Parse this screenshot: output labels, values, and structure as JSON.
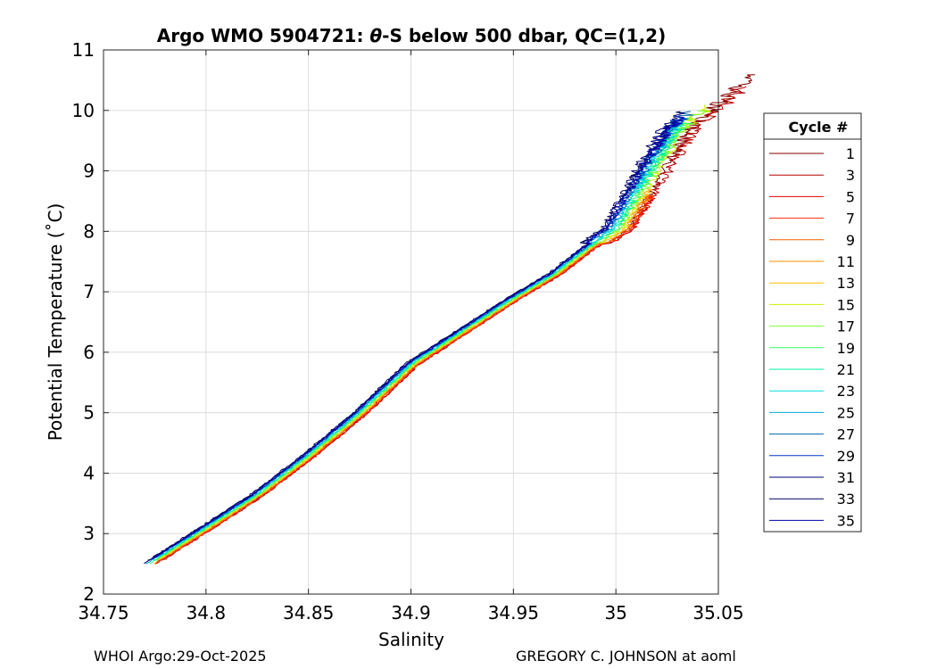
{
  "chart_data": {
    "type": "line",
    "title_prefix": "Argo WMO 5904721: ",
    "title_theta": "θ",
    "title_suffix": "-S below 500 dbar,  QC=(1,2)",
    "xlabel": "Salinity",
    "ylabel": "Potential Temperature (˚C)",
    "xlim": [
      34.75,
      35.05
    ],
    "ylim": [
      2,
      11
    ],
    "xticks": [
      "34.75",
      "34.8",
      "34.85",
      "34.9",
      "34.95",
      "35",
      "35.05"
    ],
    "yticks": [
      "2",
      "3",
      "4",
      "5",
      "6",
      "7",
      "8",
      "9",
      "10",
      "11"
    ],
    "grid": true,
    "legend_position": "right, outside plot",
    "legend_title": "Cycle #",
    "x_base": [
      34.772,
      34.8,
      34.825,
      34.85,
      34.875,
      34.9,
      34.925,
      34.95,
      34.97,
      34.985,
      35.0,
      35.008,
      35.015,
      35.022,
      35.03,
      35.04
    ],
    "y_base": [
      2.5,
      3.1,
      3.65,
      4.3,
      5.0,
      5.8,
      6.35,
      6.9,
      7.3,
      7.7,
      8.05,
      8.5,
      8.9,
      9.3,
      9.7,
      10.0
    ],
    "series": [
      {
        "name": "1",
        "color": "#800000",
        "x_offset": 0.003,
        "y_top": 10.6
      },
      {
        "name": "3",
        "color": "#b30000",
        "x_offset": 0.004,
        "y_top": 10.4
      },
      {
        "name": "5",
        "color": "#e60000",
        "x_offset": 0.004,
        "y_top": 8.6
      },
      {
        "name": "7",
        "color": "#ff2600",
        "x_offset": 0.0035,
        "y_top": 8.6
      },
      {
        "name": "9",
        "color": "#ff5900",
        "x_offset": 0.003,
        "y_top": 8.6
      },
      {
        "name": "11",
        "color": "#ff8c00",
        "x_offset": 0.0025,
        "y_top": 8.7
      },
      {
        "name": "13",
        "color": "#ffbf00",
        "x_offset": 0.002,
        "y_top": 8.7
      },
      {
        "name": "15",
        "color": "#ccf000",
        "x_offset": 0.0015,
        "y_top": 10.1
      },
      {
        "name": "17",
        "color": "#80ff33",
        "x_offset": 0.001,
        "y_top": 10.0
      },
      {
        "name": "19",
        "color": "#33ff66",
        "x_offset": 0.0005,
        "y_top": 9.8
      },
      {
        "name": "21",
        "color": "#00f0a0",
        "x_offset": 0.0,
        "y_top": 9.9
      },
      {
        "name": "23",
        "color": "#00e0e0",
        "x_offset": -0.0005,
        "y_top": 9.8
      },
      {
        "name": "25",
        "color": "#00aadd",
        "x_offset": -0.001,
        "y_top": 9.7
      },
      {
        "name": "27",
        "color": "#0066aa",
        "x_offset": -0.0015,
        "y_top": 10.0
      },
      {
        "name": "29",
        "color": "#0033cc",
        "x_offset": -0.002,
        "y_top": 9.9
      },
      {
        "name": "31",
        "color": "#000080",
        "x_offset": -0.0025,
        "y_top": 9.8
      },
      {
        "name": "33",
        "color": "#000066",
        "x_offset": -0.003,
        "y_top": 10.0
      },
      {
        "name": "35",
        "color": "#0000aa",
        "x_offset": -0.002,
        "y_top": 9.9
      }
    ]
  },
  "footer": {
    "left": "WHOI Argo:29-Oct-2025",
    "right": "GREGORY C. JOHNSON at aoml"
  }
}
